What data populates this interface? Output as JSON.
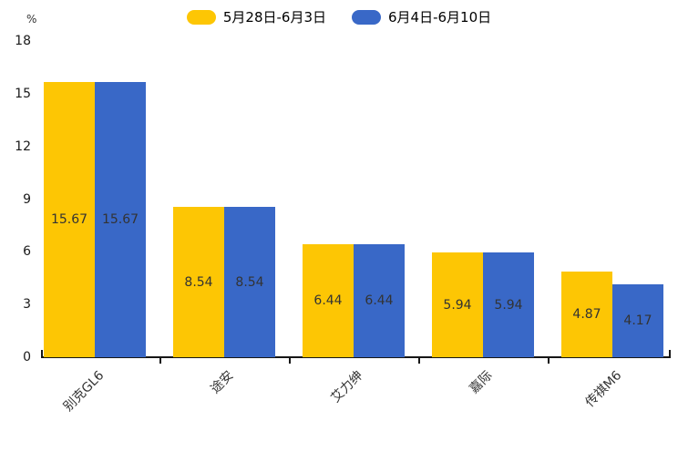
{
  "unit_label": "%",
  "legend": [
    {
      "label": "5月28日-6月3日",
      "color": "#FDC604"
    },
    {
      "label": "6月4日-6月10日",
      "color": "#3968C7"
    }
  ],
  "chart_data": {
    "type": "bar",
    "title": "",
    "xlabel": "",
    "ylabel": "%",
    "categories": [
      "别克GL6",
      "途安",
      "艾力绅",
      "嘉际",
      "传祺M6"
    ],
    "series": [
      {
        "name": "5月28日-6月3日",
        "color": "#FDC604",
        "values": [
          15.67,
          8.54,
          6.44,
          5.94,
          4.87
        ]
      },
      {
        "name": "6月4日-6月10日",
        "color": "#3968C7",
        "values": [
          15.67,
          8.54,
          6.44,
          5.94,
          4.17
        ]
      }
    ],
    "ylim": [
      0,
      18
    ],
    "yticks": [
      0,
      3,
      6,
      9,
      12,
      15,
      18
    ],
    "grid": false,
    "legend_position": "top",
    "value_labels": "inside-center",
    "value_label_decimals": 2
  }
}
